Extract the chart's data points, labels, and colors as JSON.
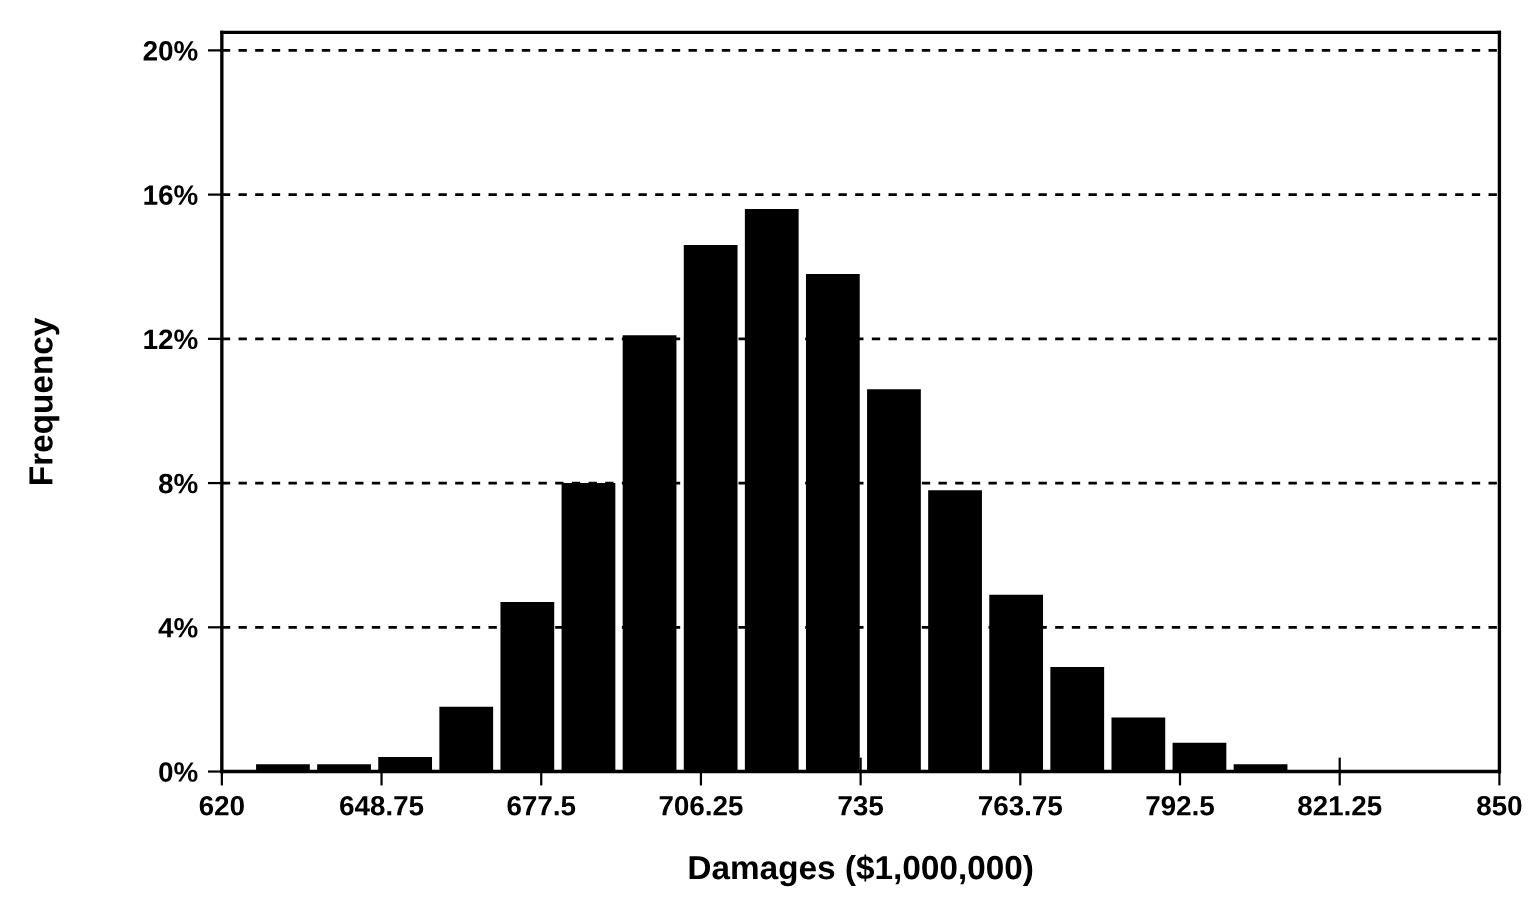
{
  "chart_data": {
    "type": "histogram",
    "xlabel": "Damages ($1,000,000)",
    "ylabel": "Frequency",
    "bins": [
      625.5,
      636.5,
      647.5,
      658.5,
      669.5,
      680.5,
      691.5,
      702.5,
      713.5,
      724.5,
      735.5,
      746.5,
      757.5,
      768.5,
      779.5,
      790.5,
      801.5,
      812.5,
      823.5,
      834.5,
      845.5
    ],
    "values": [
      0.2,
      0.2,
      0.4,
      1.8,
      4.7,
      8.0,
      12.1,
      14.6,
      15.6,
      13.8,
      10.6,
      7.8,
      4.9,
      2.9,
      1.5,
      0.8,
      0.2,
      0,
      null,
      null
    ],
    "color": "#000000",
    "xlim": [
      620,
      850
    ],
    "xticks": [
      620,
      648.75,
      677.5,
      706.25,
      735,
      763.75,
      792.5,
      821.25,
      850
    ],
    "ylim": [
      0,
      20.5
    ],
    "yticks": [
      {
        "value": 0,
        "label": "0%"
      },
      {
        "value": 4,
        "label": "4%"
      },
      {
        "value": 8,
        "label": "8%"
      },
      {
        "value": 12,
        "label": "12%"
      },
      {
        "value": 16,
        "label": "16%"
      },
      {
        "value": 20,
        "label": "20%"
      }
    ],
    "grid": "y",
    "line_style": "dashed"
  }
}
